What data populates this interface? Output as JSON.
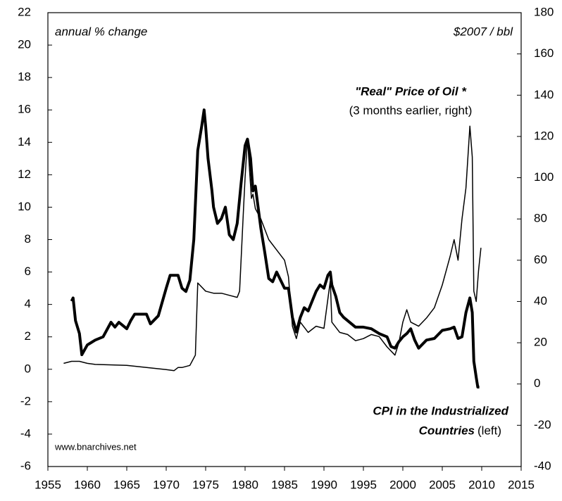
{
  "chart_data": {
    "type": "line",
    "annotations": [
      "annual % change",
      "$2007 / bbl",
      "\"Real\" Price of Oil *",
      "(3 months earlier, right)",
      "CPI in the Industrialized",
      "Countries",
      "(left)",
      "www.bnarchives.net"
    ],
    "xlim": [
      1955,
      2015
    ],
    "xticks": [
      1955,
      1960,
      1965,
      1970,
      1975,
      1980,
      1985,
      1990,
      1995,
      2000,
      2005,
      2010,
      2015
    ],
    "ylim": [
      -6,
      22
    ],
    "yticks": [
      -6,
      -4,
      -2,
      0,
      2,
      4,
      6,
      8,
      10,
      12,
      14,
      16,
      18,
      20,
      22
    ],
    "y2lim": [
      -40,
      180
    ],
    "y2ticks": [
      -40,
      -20,
      0,
      20,
      40,
      60,
      80,
      100,
      120,
      140,
      160,
      180
    ],
    "series": [
      {
        "name": "CPI in the Industrialized Countries",
        "color": "#000000",
        "axis": "y",
        "x": [
          1958.0,
          1958.2,
          1958.5,
          1959,
          1959.3,
          1960,
          1961,
          1962,
          1963,
          1963.5,
          1964,
          1964.5,
          1965,
          1965.5,
          1966,
          1967,
          1967.5,
          1968,
          1969,
          1970,
          1970.5,
          1971,
          1971.5,
          1972,
          1972.5,
          1973,
          1973.5,
          1974,
          1974.5,
          1974.8,
          1975,
          1975.3,
          1975.8,
          1976,
          1976.5,
          1977,
          1977.5,
          1978,
          1978.5,
          1979,
          1979.5,
          1980,
          1980.3,
          1980.7,
          1981,
          1981.3,
          1982,
          1982.5,
          1983,
          1983.5,
          1984,
          1984.5,
          1985,
          1985.5,
          1986,
          1986.5,
          1987,
          1987.5,
          1988,
          1988.5,
          1989,
          1989.5,
          1990,
          1990.5,
          1990.8,
          1991,
          1991.5,
          1992,
          1992.5,
          1993,
          1993.5,
          1994,
          1995,
          1996,
          1997,
          1998,
          1998.5,
          1999,
          1999.5,
          2000,
          2000.5,
          2001,
          2001.5,
          2002,
          2003,
          2004,
          2005,
          2006,
          2006.5,
          2007,
          2007.5,
          2008,
          2008.5,
          2008.8,
          2009,
          2009.3,
          2009.5,
          2009.7
        ],
        "values": [
          4.2,
          4.4,
          3.0,
          2.2,
          0.9,
          1.5,
          1.8,
          2.0,
          2.9,
          2.6,
          2.9,
          2.7,
          2.5,
          3.0,
          3.4,
          3.4,
          3.4,
          2.8,
          3.3,
          5.0,
          5.8,
          5.8,
          5.8,
          5.0,
          4.8,
          5.5,
          8.0,
          13.5,
          15.0,
          16.0,
          15.0,
          13.0,
          11.0,
          10.0,
          9.0,
          9.3,
          10.0,
          8.3,
          8.0,
          9.0,
          11.5,
          13.8,
          14.2,
          13.0,
          11.0,
          11.3,
          8.7,
          7.2,
          5.6,
          5.4,
          6.0,
          5.5,
          5.0,
          5.0,
          3.2,
          2.3,
          3.2,
          3.8,
          3.6,
          4.2,
          4.8,
          5.2,
          5.0,
          5.8,
          6.0,
          5.2,
          4.5,
          3.5,
          3.2,
          3.0,
          2.8,
          2.6,
          2.6,
          2.5,
          2.2,
          2.0,
          1.4,
          1.3,
          1.7,
          2.0,
          2.2,
          2.5,
          1.8,
          1.3,
          1.8,
          1.9,
          2.4,
          2.5,
          2.6,
          1.9,
          2.0,
          3.5,
          4.4,
          3.5,
          0.5,
          -0.5,
          -1.1,
          -1.1
        ]
      },
      {
        "name": "\"Real\" Price of Oil",
        "color": "#000000",
        "axis": "y2",
        "x": [
          1957,
          1958,
          1959,
          1960,
          1961,
          1965,
          1970,
          1971,
          1971.5,
          1972,
          1973,
          1973.7,
          1974,
          1975,
          1976,
          1977,
          1978,
          1979,
          1979.3,
          1979.8,
          1980,
          1980.3,
          1980.8,
          1981,
          1981.3,
          1982,
          1983,
          1984,
          1985,
          1985.5,
          1986,
          1986.5,
          1987,
          1988,
          1989,
          1990,
          1990.8,
          1991,
          1992,
          1993,
          1994,
          1995,
          1996,
          1997,
          1998,
          1999,
          1999.5,
          2000,
          2000.5,
          2001,
          2002,
          2003,
          2004,
          2005,
          2006,
          2006.5,
          2007,
          2007.5,
          2008,
          2008.5,
          2008.8,
          2009,
          2009.3,
          2009.6,
          2009.9
        ],
        "values": [
          10,
          11,
          11,
          10,
          9.5,
          9,
          7,
          6.5,
          8,
          8,
          9,
          14,
          49,
          45,
          44,
          44,
          43,
          42,
          45,
          85,
          100,
          119,
          90,
          92,
          85,
          80,
          70,
          65,
          60,
          52,
          28,
          22,
          30,
          25,
          28,
          27,
          50,
          30,
          25,
          24,
          21,
          22,
          24,
          23,
          18,
          14,
          20,
          30,
          36,
          30,
          28,
          32,
          37,
          48,
          62,
          70,
          60,
          80,
          95,
          125,
          110,
          45,
          40,
          55,
          66
        ]
      }
    ]
  }
}
